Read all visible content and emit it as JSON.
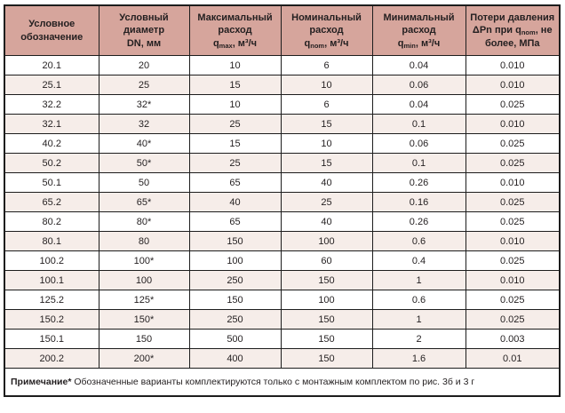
{
  "colors": {
    "header-bg": "#d6a59c",
    "stripe-bg": "#f6ede9",
    "border-color": "#1d1d1d",
    "text-color": "#231f20"
  },
  "table": {
    "columns": [
      {
        "id": "designation",
        "lines": [
          "Условное",
          "обозначение"
        ]
      },
      {
        "id": "diameter",
        "lines": [
          "Условный",
          "диаметр",
          "DN, мм"
        ]
      },
      {
        "id": "max-flow",
        "lines": [
          "Максимальный",
          "расход"
        ],
        "formula": {
          "base": "q",
          "sub": "max",
          "unit": ", м³/ч"
        }
      },
      {
        "id": "nom-flow",
        "lines": [
          "Номинальный",
          "расход"
        ],
        "formula": {
          "base": "q",
          "sub": "nom",
          "unit": ", м³/ч"
        }
      },
      {
        "id": "min-flow",
        "lines": [
          "Минимальный",
          "расход"
        ],
        "formula": {
          "base": "q",
          "sub": "min",
          "unit": ", м³/ч"
        }
      },
      {
        "id": "pressure-loss",
        "pre": "Потери давления ΔPn при q",
        "sub": "nom",
        "post": ", не более, МПа"
      }
    ],
    "rows": [
      [
        "20.1",
        "20",
        "10",
        "6",
        "0.04",
        "0.010"
      ],
      [
        "25.1",
        "25",
        "15",
        "10",
        "0.06",
        "0.010"
      ],
      [
        "32.2",
        "32*",
        "10",
        "6",
        "0.04",
        "0.025"
      ],
      [
        "32.1",
        "32",
        "25",
        "15",
        "0.1",
        "0.010"
      ],
      [
        "40.2",
        "40*",
        "15",
        "10",
        "0.06",
        "0.025"
      ],
      [
        "50.2",
        "50*",
        "25",
        "15",
        "0.1",
        "0.025"
      ],
      [
        "50.1",
        "50",
        "65",
        "40",
        "0.26",
        "0.010"
      ],
      [
        "65.2",
        "65*",
        "40",
        "25",
        "0.16",
        "0.025"
      ],
      [
        "80.2",
        "80*",
        "65",
        "40",
        "0.26",
        "0.025"
      ],
      [
        "80.1",
        "80",
        "150",
        "100",
        "0.6",
        "0.010"
      ],
      [
        "100.2",
        "100*",
        "100",
        "60",
        "0.4",
        "0.025"
      ],
      [
        "100.1",
        "100",
        "250",
        "150",
        "1",
        "0.010"
      ],
      [
        "125.2",
        "125*",
        "150",
        "100",
        "0.6",
        "0.025"
      ],
      [
        "150.2",
        "150*",
        "250",
        "150",
        "1",
        "0.025"
      ],
      [
        "150.1",
        "150",
        "500",
        "150",
        "2",
        "0.003"
      ],
      [
        "200.2",
        "200*",
        "400",
        "150",
        "1.6",
        "0.01"
      ]
    ],
    "note": {
      "label": "Примечание*",
      "text": " Обозначенные варианты комплектируются только с монтажным комплектом по рис. 3б и 3 г"
    }
  }
}
